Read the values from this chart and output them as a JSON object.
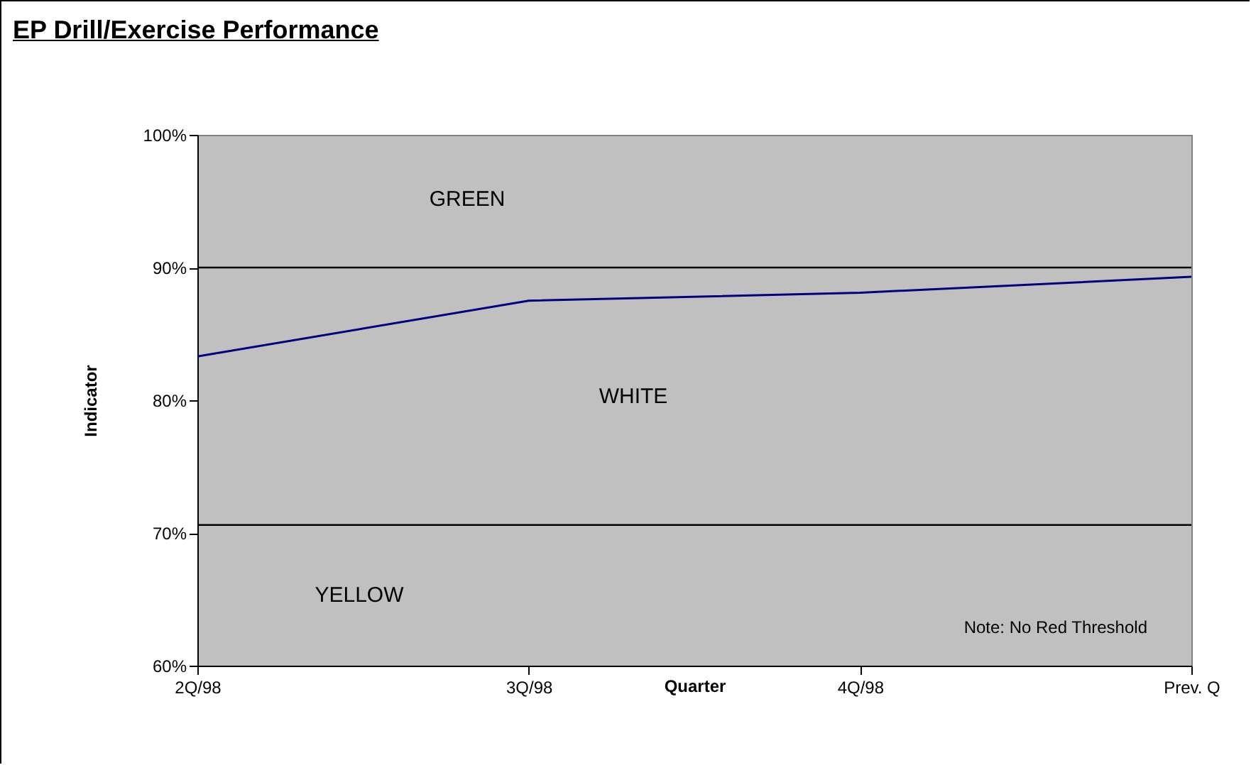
{
  "chart_data": {
    "type": "line",
    "title": "EP Drill/Exercise Performance",
    "xlabel": "Quarter",
    "ylabel": "Indicator",
    "categories": [
      "2Q/98",
      "3Q/98",
      "4Q/98",
      "Prev. Q"
    ],
    "series": [
      {
        "color": "#000080",
        "values": [
          83.3,
          87.5,
          88.1,
          89.3
        ]
      }
    ],
    "ylim": [
      60,
      100
    ],
    "yticks": [
      {
        "value": 60,
        "label": "60%"
      },
      {
        "value": 70,
        "label": "70%"
      },
      {
        "value": 80,
        "label": "80%"
      },
      {
        "value": 90,
        "label": "90%"
      },
      {
        "value": 100,
        "label": "100%"
      }
    ],
    "ref_lines": [
      {
        "axis": "y",
        "value": 90,
        "color": "#000000"
      },
      {
        "axis": "y",
        "value": 70.6,
        "color": "#000000"
      }
    ],
    "annotations": [
      "GREEN",
      "WHITE",
      "YELLOW",
      "Note:  No Red Threshold"
    ],
    "grid": false,
    "marker": "none",
    "line_style": "solid"
  }
}
